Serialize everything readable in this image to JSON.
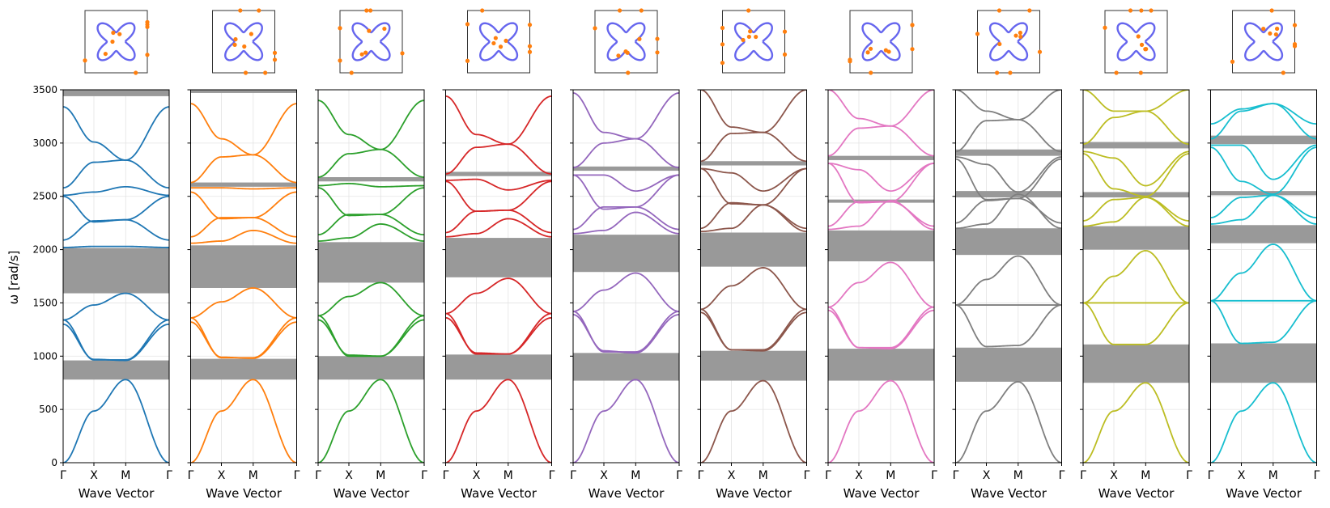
{
  "figure": {
    "ylabel": "ω [rad/s]",
    "xlabel": "Wave Vector",
    "x_ticks": [
      "Γ",
      "X",
      "M",
      "Γ"
    ],
    "y_ticks": [
      "0",
      "500",
      "1000",
      "1500",
      "2000",
      "2500",
      "3000",
      "3500"
    ],
    "gap_color": "#999999",
    "inset_curve_color": "#6666ee",
    "inset_point_color": "#ff7f0e",
    "inset_icon": "unit-cell-shape-icon"
  },
  "chart_data": [
    {
      "type": "line",
      "panel": 1,
      "color": "#1f77b4",
      "xlabel": "Wave Vector",
      "ylabel": "ω [rad/s]",
      "x_ticks": [
        "Γ",
        "X",
        "M",
        "Γ"
      ],
      "ylim": [
        0,
        3500
      ],
      "grid": true,
      "bandgaps": [
        [
          780,
          960
        ],
        [
          1590,
          2015
        ],
        [
          3440,
          3500
        ]
      ],
      "series": [
        {
          "values": [
            0,
            485,
            780,
            0
          ]
        },
        {
          "values": [
            1340,
            1480,
            1590,
            1340
          ]
        },
        {
          "values": [
            1340,
            965,
            965,
            1340
          ]
        },
        {
          "values": [
            1300,
            970,
            960,
            1300
          ]
        },
        {
          "values": [
            2020,
            2030,
            2030,
            2020
          ]
        },
        {
          "values": [
            2090,
            2270,
            2280,
            2090
          ]
        },
        {
          "values": [
            2500,
            2260,
            2280,
            2500
          ]
        },
        {
          "values": [
            2510,
            2540,
            2590,
            2510
          ]
        },
        {
          "values": [
            2580,
            2820,
            2840,
            2580
          ]
        },
        {
          "values": [
            3340,
            3010,
            2840,
            3340
          ]
        }
      ]
    },
    {
      "type": "line",
      "panel": 2,
      "color": "#ff7f0e",
      "xlabel": "Wave Vector",
      "ylabel": "",
      "x_ticks": [
        "Γ",
        "X",
        "M",
        "Γ"
      ],
      "ylim": [
        0,
        3500
      ],
      "grid": true,
      "bandgaps": [
        [
          780,
          975
        ],
        [
          1640,
          2040
        ],
        [
          2590,
          2630
        ],
        [
          3470,
          3500
        ]
      ],
      "series": [
        {
          "values": [
            0,
            485,
            780,
            0
          ]
        },
        {
          "values": [
            1360,
            1510,
            1640,
            1360
          ]
        },
        {
          "values": [
            1360,
            985,
            985,
            1360
          ]
        },
        {
          "values": [
            1320,
            990,
            980,
            1320
          ]
        },
        {
          "values": [
            2060,
            2080,
            2180,
            2060
          ]
        },
        {
          "values": [
            2120,
            2300,
            2300,
            2120
          ]
        },
        {
          "values": [
            2540,
            2290,
            2300,
            2540
          ]
        },
        {
          "values": [
            2580,
            2580,
            2570,
            2580
          ]
        },
        {
          "values": [
            2630,
            2870,
            2890,
            2630
          ]
        },
        {
          "values": [
            3370,
            3040,
            2890,
            3370
          ]
        }
      ]
    },
    {
      "type": "line",
      "panel": 3,
      "color": "#2ca02c",
      "xlabel": "Wave Vector",
      "ylabel": "",
      "x_ticks": [
        "Γ",
        "X",
        "M",
        "Γ"
      ],
      "ylim": [
        0,
        3500
      ],
      "grid": true,
      "bandgaps": [
        [
          780,
          1000
        ],
        [
          1690,
          2070
        ],
        [
          2640,
          2680
        ]
      ],
      "series": [
        {
          "values": [
            0,
            485,
            780,
            0
          ]
        },
        {
          "values": [
            1380,
            1560,
            1690,
            1380
          ]
        },
        {
          "values": [
            1380,
            1000,
            1000,
            1380
          ]
        },
        {
          "values": [
            1340,
            1010,
            1000,
            1340
          ]
        },
        {
          "values": [
            2080,
            2110,
            2240,
            2080
          ]
        },
        {
          "values": [
            2140,
            2330,
            2330,
            2140
          ]
        },
        {
          "values": [
            2580,
            2320,
            2330,
            2580
          ]
        },
        {
          "values": [
            2600,
            2620,
            2590,
            2600
          ]
        },
        {
          "values": [
            2680,
            2900,
            2940,
            2680
          ]
        },
        {
          "values": [
            3400,
            3080,
            2940,
            3400
          ]
        }
      ]
    },
    {
      "type": "line",
      "panel": 4,
      "color": "#d62728",
      "xlabel": "Wave Vector",
      "ylabel": "",
      "x_ticks": [
        "Γ",
        "X",
        "M",
        "Γ"
      ],
      "ylim": [
        0,
        3500
      ],
      "grid": true,
      "bandgaps": [
        [
          780,
          1015
        ],
        [
          1740,
          2110
        ],
        [
          2690,
          2730
        ]
      ],
      "series": [
        {
          "values": [
            0,
            485,
            780,
            0
          ]
        },
        {
          "values": [
            1400,
            1590,
            1730,
            1400
          ]
        },
        {
          "values": [
            1400,
            1020,
            1020,
            1400
          ]
        },
        {
          "values": [
            1360,
            1030,
            1020,
            1360
          ]
        },
        {
          "values": [
            2120,
            2150,
            2290,
            2120
          ]
        },
        {
          "values": [
            2160,
            2360,
            2370,
            2160
          ]
        },
        {
          "values": [
            2640,
            2360,
            2370,
            2640
          ]
        },
        {
          "values": [
            2650,
            2660,
            2560,
            2650
          ]
        },
        {
          "values": [
            2710,
            2960,
            2990,
            2710
          ]
        },
        {
          "values": [
            3440,
            3080,
            2990,
            3440
          ]
        }
      ]
    },
    {
      "type": "line",
      "panel": 5,
      "color": "#9467bd",
      "xlabel": "Wave Vector",
      "ylabel": "",
      "x_ticks": [
        "Γ",
        "X",
        "M",
        "Γ"
      ],
      "ylim": [
        0,
        3500
      ],
      "grid": true,
      "bandgaps": [
        [
          770,
          1030
        ],
        [
          1790,
          2140
        ],
        [
          2740,
          2780
        ]
      ],
      "series": [
        {
          "values": [
            0,
            485,
            780,
            0
          ]
        },
        {
          "values": [
            1420,
            1620,
            1780,
            1420
          ]
        },
        {
          "values": [
            1420,
            1040,
            1040,
            1420
          ]
        },
        {
          "values": [
            1390,
            1050,
            1030,
            1390
          ]
        },
        {
          "values": [
            2150,
            2180,
            2350,
            2150
          ]
        },
        {
          "values": [
            2190,
            2400,
            2400,
            2190
          ]
        },
        {
          "values": [
            2700,
            2380,
            2400,
            2700
          ]
        },
        {
          "values": [
            2700,
            2700,
            2550,
            2700
          ]
        },
        {
          "values": [
            2770,
            3000,
            3040,
            2770
          ]
        },
        {
          "values": [
            3470,
            3100,
            3040,
            3470
          ]
        }
      ]
    },
    {
      "type": "line",
      "panel": 6,
      "color": "#8c564b",
      "xlabel": "Wave Vector",
      "ylabel": "",
      "x_ticks": [
        "Γ",
        "X",
        "M",
        "Γ"
      ],
      "ylim": [
        0,
        3500
      ],
      "grid": true,
      "bandgaps": [
        [
          770,
          1050
        ],
        [
          1840,
          2160
        ],
        [
          2790,
          2830
        ]
      ],
      "series": [
        {
          "values": [
            0,
            485,
            770,
            0
          ]
        },
        {
          "values": [
            1440,
            1660,
            1830,
            1440
          ]
        },
        {
          "values": [
            1440,
            1060,
            1060,
            1440
          ]
        },
        {
          "values": [
            1410,
            1060,
            1050,
            1410
          ]
        },
        {
          "values": [
            2170,
            2200,
            2420,
            2170
          ]
        },
        {
          "values": [
            2200,
            2440,
            2420,
            2200
          ]
        },
        {
          "values": [
            2760,
            2430,
            2420,
            2760
          ]
        },
        {
          "values": [
            2760,
            2720,
            2550,
            2760
          ]
        },
        {
          "values": [
            2830,
            3090,
            3100,
            2830
          ]
        },
        {
          "values": [
            3500,
            3150,
            3100,
            3500
          ]
        }
      ]
    },
    {
      "type": "line",
      "panel": 7,
      "color": "#e377c2",
      "xlabel": "Wave Vector",
      "ylabel": "",
      "x_ticks": [
        "Γ",
        "X",
        "M",
        "Γ"
      ],
      "ylim": [
        0,
        3500
      ],
      "grid": true,
      "bandgaps": [
        [
          770,
          1070
        ],
        [
          1890,
          2180
        ],
        [
          2440,
          2470
        ],
        [
          2840,
          2880
        ]
      ],
      "series": [
        {
          "values": [
            0,
            485,
            770,
            0
          ]
        },
        {
          "values": [
            1460,
            1690,
            1880,
            1460
          ]
        },
        {
          "values": [
            1460,
            1080,
            1080,
            1460
          ]
        },
        {
          "values": [
            1430,
            1080,
            1070,
            1430
          ]
        },
        {
          "values": [
            2190,
            2220,
            2460,
            2190
          ]
        },
        {
          "values": [
            2220,
            2450,
            2450,
            2220
          ]
        },
        {
          "values": [
            2810,
            2440,
            2450,
            2810
          ]
        },
        {
          "values": [
            2810,
            2750,
            2550,
            2810
          ]
        },
        {
          "values": [
            2880,
            3140,
            3160,
            2880
          ]
        },
        {
          "values": [
            3500,
            3230,
            3160,
            3500
          ]
        }
      ]
    },
    {
      "type": "line",
      "panel": 8,
      "color": "#7f7f7f",
      "xlabel": "Wave Vector",
      "ylabel": "",
      "x_ticks": [
        "Γ",
        "X",
        "M",
        "Γ"
      ],
      "ylim": [
        0,
        3500
      ],
      "grid": true,
      "bandgaps": [
        [
          760,
          1080
        ],
        [
          1950,
          2200
        ],
        [
          2490,
          2550
        ],
        [
          2880,
          2940
        ]
      ],
      "series": [
        {
          "values": [
            0,
            485,
            760,
            0
          ]
        },
        {
          "values": [
            1480,
            1720,
            1940,
            1480
          ]
        },
        {
          "values": [
            1480,
            1090,
            1100,
            1480
          ]
        },
        {
          "values": [
            1480,
            1480,
            1480,
            1480
          ]
        },
        {
          "values": [
            2200,
            2240,
            2520,
            2200
          ]
        },
        {
          "values": [
            2250,
            2460,
            2480,
            2250
          ]
        },
        {
          "values": [
            2850,
            2470,
            2480,
            2850
          ]
        },
        {
          "values": [
            2870,
            2800,
            2540,
            2870
          ]
        },
        {
          "values": [
            2920,
            3210,
            3220,
            2920
          ]
        },
        {
          "values": [
            3500,
            3300,
            3220,
            3500
          ]
        }
      ]
    },
    {
      "type": "line",
      "panel": 9,
      "color": "#bcbd22",
      "xlabel": "Wave Vector",
      "ylabel": "",
      "x_ticks": [
        "Γ",
        "X",
        "M",
        "Γ"
      ],
      "ylim": [
        0,
        3500
      ],
      "grid": true,
      "bandgaps": [
        [
          750,
          1110
        ],
        [
          2000,
          2220
        ],
        [
          2490,
          2540
        ],
        [
          2950,
          3010
        ]
      ],
      "series": [
        {
          "values": [
            0,
            485,
            750,
            0
          ]
        },
        {
          "values": [
            1500,
            1750,
            1990,
            1500
          ]
        },
        {
          "values": [
            1500,
            1110,
            1110,
            1500
          ]
        },
        {
          "values": [
            1500,
            1500,
            1500,
            1500
          ]
        },
        {
          "values": [
            2220,
            2260,
            2490,
            2220
          ]
        },
        {
          "values": [
            2270,
            2470,
            2490,
            2270
          ]
        },
        {
          "values": [
            2900,
            2570,
            2500,
            2900
          ]
        },
        {
          "values": [
            2920,
            2860,
            2600,
            2920
          ]
        },
        {
          "values": [
            2990,
            3240,
            3300,
            2990
          ]
        },
        {
          "values": [
            3500,
            3300,
            3300,
            3500
          ]
        }
      ]
    },
    {
      "type": "line",
      "panel": 10,
      "color": "#17becf",
      "xlabel": "Wave Vector",
      "ylabel": "",
      "x_ticks": [
        "Γ",
        "X",
        "M",
        "Γ"
      ],
      "ylim": [
        0,
        3500
      ],
      "grid": true,
      "bandgaps": [
        [
          750,
          1120
        ],
        [
          2060,
          2230
        ],
        [
          2510,
          2550
        ],
        [
          2990,
          3070
        ]
      ],
      "series": [
        {
          "values": [
            0,
            485,
            750,
            0
          ]
        },
        {
          "values": [
            1520,
            1780,
            2050,
            1520
          ]
        },
        {
          "values": [
            1520,
            1120,
            1130,
            1520
          ]
        },
        {
          "values": [
            1520,
            1520,
            1520,
            1520
          ]
        },
        {
          "values": [
            2240,
            2280,
            2510,
            2240
          ]
        },
        {
          "values": [
            2300,
            2490,
            2510,
            2300
          ]
        },
        {
          "values": [
            2960,
            2640,
            2520,
            2960
          ]
        },
        {
          "values": [
            2980,
            2980,
            2660,
            2980
          ]
        },
        {
          "values": [
            3040,
            3300,
            3370,
            3040
          ]
        },
        {
          "values": [
            3180,
            3320,
            3370,
            3180
          ]
        }
      ]
    }
  ]
}
